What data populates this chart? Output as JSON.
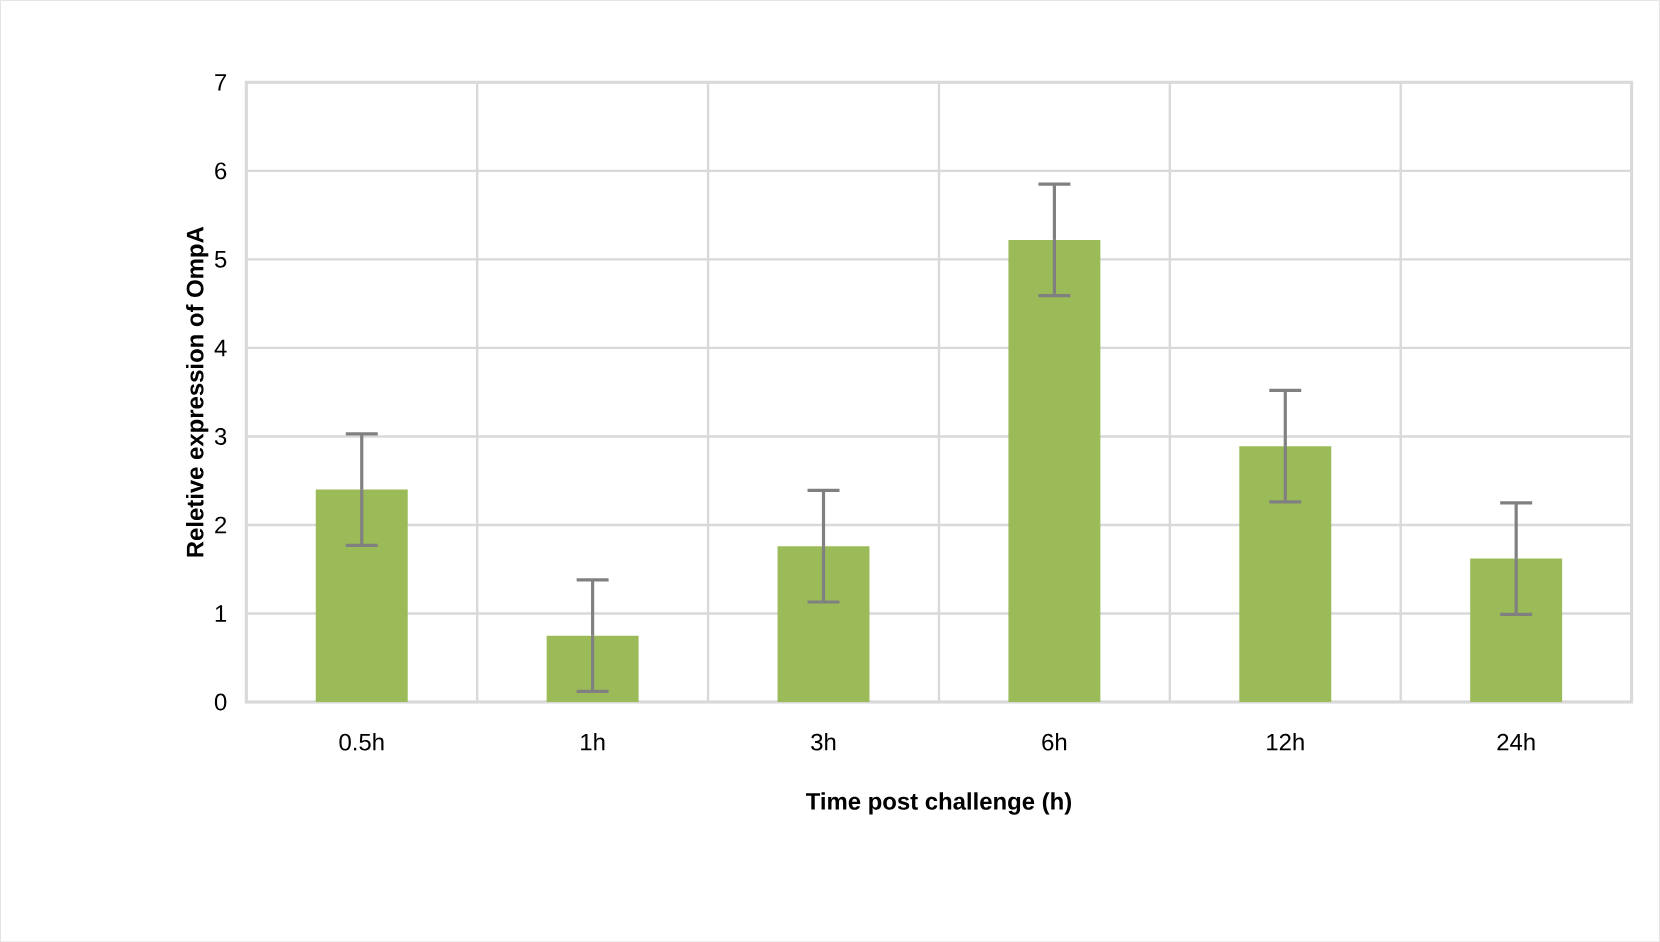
{
  "chart_data": {
    "type": "bar",
    "xlabel": "Time post challenge (h)",
    "ylabel": "Reletive expression of OmpA",
    "categories": [
      "0.5h",
      "1h",
      "3h",
      "6h",
      "12h",
      "24h"
    ],
    "values": [
      2.4,
      0.75,
      1.76,
      5.22,
      2.89,
      1.62
    ],
    "errors": [
      0.63,
      0.63,
      0.63,
      0.63,
      0.63,
      0.63
    ],
    "color": "#9bbb59",
    "ylim": [
      0,
      7
    ],
    "yticks": [
      0,
      1,
      2,
      3,
      4,
      5,
      6,
      7
    ],
    "grid": true
  }
}
